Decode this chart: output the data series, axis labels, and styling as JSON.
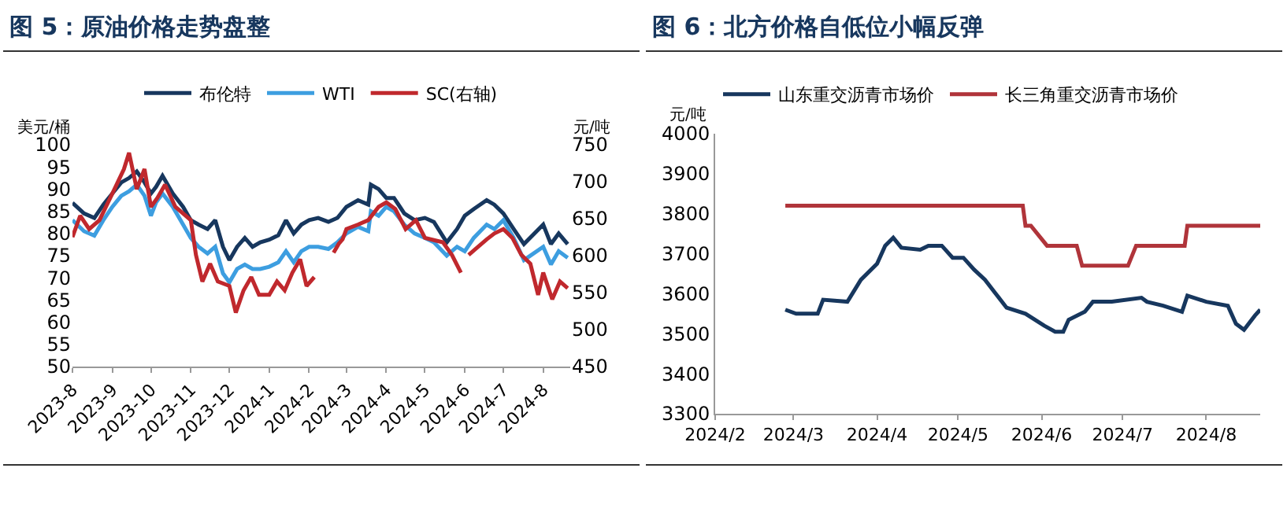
{
  "chart_data": [
    {
      "type": "line",
      "title": "图 5：原油价格走势盘整",
      "ylabel": "美元/桶",
      "y2label": "元/吨",
      "legend": "top",
      "grid": false,
      "marker": "none",
      "line_style": "solid",
      "xlim": [
        "2023-08-01",
        "2024-08-22"
      ],
      "xticks": [
        {
          "value": "2023-08-01",
          "label": "2023-8"
        },
        {
          "value": "2023-09-01",
          "label": "2023-9"
        },
        {
          "value": "2023-10-01",
          "label": "2023-10"
        },
        {
          "value": "2023-11-01",
          "label": "2023-11"
        },
        {
          "value": "2023-12-01",
          "label": "2023-12"
        },
        {
          "value": "2024-01-01",
          "label": "2024-1"
        },
        {
          "value": "2024-02-01",
          "label": "2024-2"
        },
        {
          "value": "2024-03-01",
          "label": "2024-3"
        },
        {
          "value": "2024-04-01",
          "label": "2024-4"
        },
        {
          "value": "2024-05-01",
          "label": "2024-5"
        },
        {
          "value": "2024-06-01",
          "label": "2024-6"
        },
        {
          "value": "2024-07-01",
          "label": "2024-7"
        },
        {
          "value": "2024-08-01",
          "label": "2024-8"
        }
      ],
      "ylim": [
        50,
        100
      ],
      "yticks": [
        50,
        55,
        60,
        65,
        70,
        75,
        80,
        85,
        90,
        95,
        100
      ],
      "y2lim": [
        450,
        750
      ],
      "y2ticks": [
        450,
        500,
        550,
        600,
        650,
        700,
        750
      ],
      "series": [
        {
          "name": "布伦特",
          "color": "#17375e",
          "x": [
            "2023-08-01",
            "2023-08-10",
            "2023-08-18",
            "2023-08-25",
            "2023-09-01",
            "2023-09-08",
            "2023-09-14",
            "2023-09-20",
            "2023-09-26",
            "2023-10-01",
            "2023-10-05",
            "2023-10-10",
            "2023-10-18",
            "2023-10-26",
            "2023-11-01",
            "2023-11-07",
            "2023-11-14",
            "2023-11-20",
            "2023-11-26",
            "2023-12-01",
            "2023-12-07",
            "2023-12-13",
            "2023-12-19",
            "2023-12-25",
            "2024-01-01",
            "2024-01-08",
            "2024-01-14",
            "2024-01-20",
            "2024-01-26",
            "2024-02-01",
            "2024-02-08",
            "2024-02-16",
            "2024-02-23",
            "2024-03-01",
            "2024-03-10",
            "2024-03-18",
            "2024-03-20",
            "2024-03-26",
            "2024-04-01",
            "2024-04-07",
            "2024-04-15",
            "2024-04-23",
            "2024-05-01",
            "2024-05-08",
            "2024-05-18",
            "2024-05-26",
            "2024-06-01",
            "2024-06-08",
            "2024-06-18",
            "2024-06-24",
            "2024-07-01",
            "2024-07-09",
            "2024-07-17",
            "2024-08-01",
            "2024-08-07",
            "2024-08-13",
            "2024-08-20"
          ],
          "values": [
            86.9,
            84.5,
            83.5,
            86.5,
            89,
            91.5,
            92.5,
            94,
            91.5,
            89,
            90.5,
            93,
            89,
            86,
            83,
            82,
            81,
            83,
            77,
            74,
            77,
            79,
            77,
            78,
            78.6,
            79.6,
            83,
            80,
            82,
            83,
            83.5,
            82.6,
            83.5,
            86,
            87.5,
            86.5,
            91,
            90,
            88,
            88,
            84.5,
            83,
            83.5,
            82.6,
            78,
            81,
            84,
            85.5,
            87.5,
            86.5,
            84.5,
            81,
            77.6,
            82,
            77.6,
            80,
            77.6
          ]
        },
        {
          "name": "WTI",
          "color": "#3d9ee0",
          "x": [
            "2023-08-01",
            "2023-08-10",
            "2023-08-18",
            "2023-08-25",
            "2023-09-01",
            "2023-09-08",
            "2023-09-14",
            "2023-09-20",
            "2023-09-26",
            "2023-10-01",
            "2023-10-05",
            "2023-10-10",
            "2023-10-18",
            "2023-10-26",
            "2023-11-01",
            "2023-11-07",
            "2023-11-14",
            "2023-11-20",
            "2023-11-26",
            "2023-12-01",
            "2023-12-07",
            "2023-12-13",
            "2023-12-19",
            "2023-12-25",
            "2024-01-01",
            "2024-01-08",
            "2024-01-14",
            "2024-01-20",
            "2024-01-26",
            "2024-02-01",
            "2024-02-08",
            "2024-02-16",
            "2024-02-23",
            "2024-03-01",
            "2024-03-10",
            "2024-03-18",
            "2024-03-20",
            "2024-03-26",
            "2024-04-01",
            "2024-04-07",
            "2024-04-15",
            "2024-04-23",
            "2024-05-01",
            "2024-05-08",
            "2024-05-18",
            "2024-05-26",
            "2024-06-01",
            "2024-06-08",
            "2024-06-18",
            "2024-06-24",
            "2024-07-01",
            "2024-07-09",
            "2024-07-17",
            "2024-08-01",
            "2024-08-07",
            "2024-08-13",
            "2024-08-20"
          ],
          "values": [
            83,
            80.5,
            79.5,
            83,
            86,
            88.5,
            89.5,
            91,
            88.5,
            84,
            87,
            89,
            86,
            82,
            79,
            77,
            75.5,
            77,
            71,
            69,
            72,
            73,
            72,
            72,
            72.5,
            73.5,
            76,
            73.5,
            76,
            77,
            77,
            76.5,
            78,
            80,
            81.5,
            80.5,
            85,
            84,
            86,
            85,
            82,
            80,
            79,
            78,
            75,
            77,
            76,
            79,
            82,
            81,
            83,
            79,
            74,
            77,
            73,
            76,
            74.5
          ]
        },
        {
          "name": "SC(右轴)",
          "color": "#c0282d",
          "axis": "y2",
          "x": [
            "2023-08-01",
            "2023-08-07",
            "2023-08-14",
            "2023-08-22",
            "2023-09-01",
            "2023-09-10",
            "2023-09-14",
            "2023-09-20",
            "2023-09-26",
            "2023-10-01",
            "2023-10-06",
            "2023-10-12",
            "2023-10-20",
            "2023-11-01",
            "2023-11-05",
            "2023-11-10",
            "2023-11-16",
            "2023-11-22",
            "2023-12-01",
            "2023-12-06",
            "2023-12-12",
            "2023-12-18",
            "2023-12-24",
            "2024-01-01",
            "2024-01-07",
            "2024-01-13",
            "2024-01-19",
            "2024-01-25",
            "2024-01-30",
            "2024-02-05",
            "2024-02-12",
            "2024-02-20",
            "2024-02-24",
            "2024-02-27",
            "2024-03-01",
            "2024-03-10",
            "2024-03-18",
            "2024-03-26",
            "2024-04-01",
            "2024-04-08",
            "2024-04-16",
            "2024-04-24",
            "2024-05-01",
            "2024-05-08",
            "2024-05-15",
            "2024-05-22",
            "2024-05-29",
            "2024-06-01",
            "2024-06-04",
            "2024-06-10",
            "2024-06-18",
            "2024-06-24",
            "2024-07-01",
            "2024-07-08",
            "2024-07-15",
            "2024-07-22",
            "2024-07-28",
            "2024-08-01",
            "2024-08-08",
            "2024-08-14",
            "2024-08-20"
          ],
          "values": [
            625,
            654,
            636,
            648,
            684,
            717,
            739,
            690,
            717,
            666,
            678,
            696,
            666,
            648,
            601,
            565,
            589,
            565,
            559,
            523,
            553,
            571,
            547,
            547,
            565,
            553,
            577,
            595,
            559,
            571,
            null,
            604,
            616,
            622,
            636,
            642,
            648,
            666,
            672,
            663,
            636,
            648,
            624,
            621,
            618,
            601,
            577,
            null,
            601,
            610,
            622,
            630,
            636,
            624,
            601,
            589,
            547,
            577,
            541,
            565,
            556
          ]
        }
      ]
    },
    {
      "type": "line",
      "title": "图 6：北方价格自低位小幅反弹",
      "ylabel": "元/吨",
      "legend": "top left",
      "grid": false,
      "marker": "none",
      "line_style": "solid",
      "xlim": [
        "2024-02-01",
        "2024-08-21"
      ],
      "xticks": [
        {
          "value": "2024-02-01",
          "label": "2024/2"
        },
        {
          "value": "2024-03-01",
          "label": "2024/3"
        },
        {
          "value": "2024-04-01",
          "label": "2024/4"
        },
        {
          "value": "2024-05-01",
          "label": "2024/5"
        },
        {
          "value": "2024-06-01",
          "label": "2024/6"
        },
        {
          "value": "2024-07-01",
          "label": "2024/7"
        },
        {
          "value": "2024-08-01",
          "label": "2024/8"
        }
      ],
      "ylim": [
        3300,
        4000
      ],
      "yticks": [
        3300,
        3400,
        3500,
        3600,
        3700,
        3800,
        3900,
        4000
      ],
      "series": [
        {
          "name": "山东重交沥青市场价",
          "color": "#17375e",
          "x": [
            "2024-02-27",
            "2024-03-02",
            "2024-03-10",
            "2024-03-12",
            "2024-03-21",
            "2024-03-26",
            "2024-04-01",
            "2024-04-04",
            "2024-04-07",
            "2024-04-10",
            "2024-04-17",
            "2024-04-20",
            "2024-04-25",
            "2024-04-29",
            "2024-05-03",
            "2024-05-07",
            "2024-05-11",
            "2024-05-15",
            "2024-05-19",
            "2024-05-26",
            "2024-06-02",
            "2024-06-06",
            "2024-06-09",
            "2024-06-11",
            "2024-06-17",
            "2024-06-20",
            "2024-06-27",
            "2024-07-08",
            "2024-07-10",
            "2024-07-16",
            "2024-07-23",
            "2024-07-25",
            "2024-08-01",
            "2024-08-09",
            "2024-08-12",
            "2024-08-15",
            "2024-08-19",
            "2024-08-21"
          ],
          "values": [
            3560,
            3550,
            3550,
            3585,
            3580,
            3635,
            3675,
            3720,
            3740,
            3715,
            3710,
            3720,
            3720,
            3690,
            3690,
            3660,
            3635,
            3600,
            3565,
            3550,
            3520,
            3505,
            3505,
            3535,
            3555,
            3580,
            3580,
            3590,
            3580,
            3570,
            3555,
            3595,
            3580,
            3570,
            3525,
            3510,
            3545,
            3560
          ]
        },
        {
          "name": "长三角重交沥青市场价",
          "color": "#b0343a",
          "x": [
            "2024-02-27",
            "2024-05-25",
            "2024-05-26",
            "2024-05-28",
            "2024-06-03",
            "2024-06-14",
            "2024-06-16",
            "2024-07-03",
            "2024-07-06",
            "2024-07-24",
            "2024-07-25",
            "2024-08-21"
          ],
          "values": [
            3820,
            3820,
            3770,
            3770,
            3720,
            3720,
            3670,
            3670,
            3720,
            3720,
            3770,
            3770
          ]
        }
      ]
    }
  ]
}
